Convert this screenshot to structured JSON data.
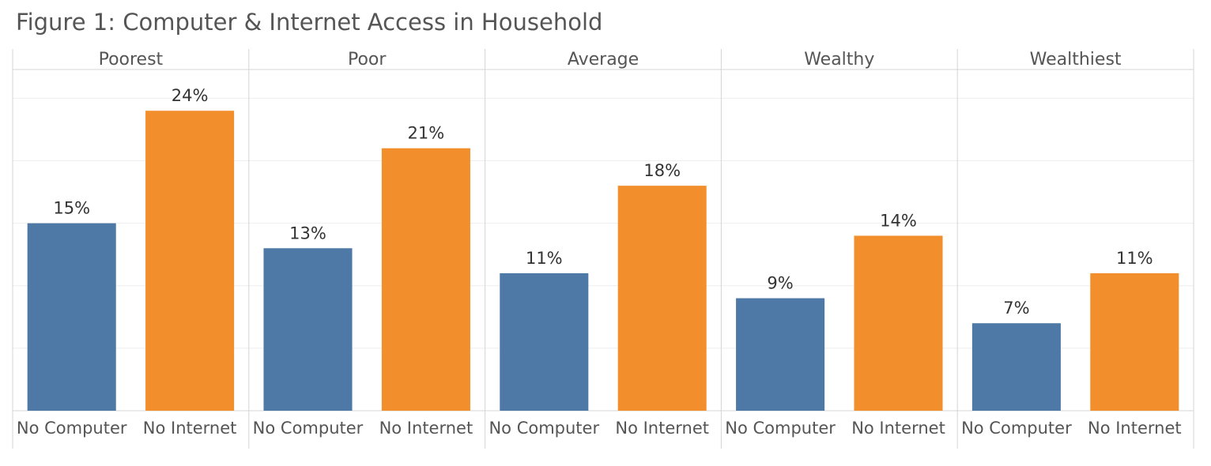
{
  "chart_data": {
    "type": "bar",
    "title": "Figure 1: Computer & Internet Access in Household",
    "panels": [
      {
        "name": "Poorest",
        "categories": [
          "No Computer",
          "No Internet"
        ],
        "values": [
          15,
          24
        ],
        "value_labels": [
          "15%",
          "24%"
        ]
      },
      {
        "name": "Poor",
        "categories": [
          "No Computer",
          "No Internet"
        ],
        "values": [
          13,
          21
        ],
        "value_labels": [
          "13%",
          "21%"
        ]
      },
      {
        "name": "Average",
        "categories": [
          "No Computer",
          "No Internet"
        ],
        "values": [
          11,
          18
        ],
        "value_labels": [
          "11%",
          "18%"
        ]
      },
      {
        "name": "Wealthy",
        "categories": [
          "No Computer",
          "No Internet"
        ],
        "values": [
          9,
          14
        ],
        "value_labels": [
          "9%",
          "14%"
        ]
      },
      {
        "name": "Wealthiest",
        "categories": [
          "No Computer",
          "No Internet"
        ],
        "values": [
          7,
          11
        ],
        "value_labels": [
          "7%",
          "11%"
        ]
      }
    ],
    "colors": [
      "#4e79a7",
      "#f28e2b"
    ],
    "ylim": [
      0,
      27.3
    ],
    "yticks": [
      0,
      5,
      10,
      15,
      20,
      25
    ],
    "grid": true
  }
}
